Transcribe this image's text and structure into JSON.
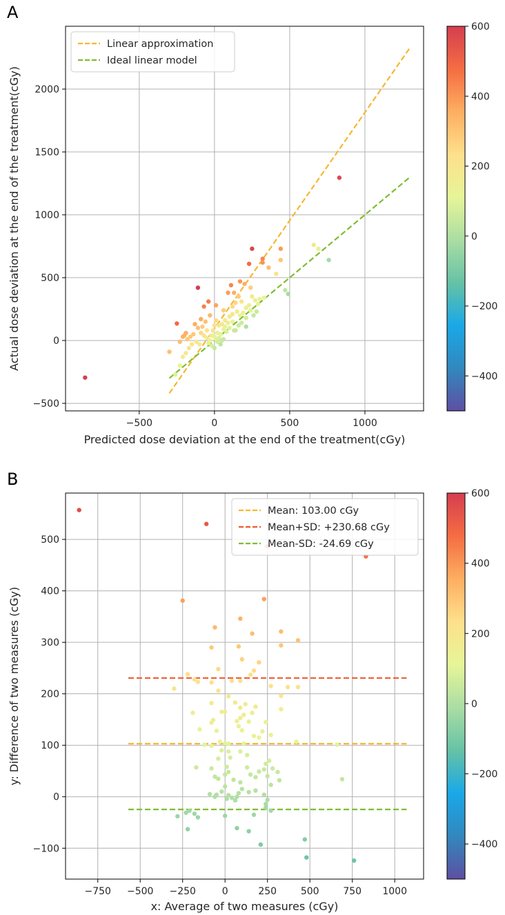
{
  "colormap": {
    "stops": [
      "#5e4fa2",
      "#3288bd",
      "#1aa8e8",
      "#66c2a5",
      "#abdda4",
      "#e6f598",
      "#fee08b",
      "#fdae61",
      "#f46d43",
      "#d53e4f"
    ],
    "min": -500,
    "max": 600,
    "ticks": [
      -400,
      -200,
      0,
      200,
      400,
      600
    ],
    "tick_labels": [
      "−400",
      "−200",
      "0",
      "200",
      "400",
      "600"
    ]
  },
  "chart_data": [
    {
      "type": "scatter",
      "panel_label": "A",
      "xlabel": "Predicted dose deviation at the end of the treatment(cGy)",
      "ylabel": "Actual dose deviation at the end of the treatment(cGy)",
      "xlim": [
        -990,
        1390
      ],
      "ylim": [
        -560,
        2500
      ],
      "xticks": [
        -500,
        0,
        500,
        1000
      ],
      "xtick_labels": [
        "−500",
        "0",
        "500",
        "1000"
      ],
      "yticks": [
        -500,
        0,
        500,
        1000,
        1500,
        2000
      ],
      "ytick_labels": [
        "−500",
        "0",
        "500",
        "1000",
        "1500",
        "2000"
      ],
      "grid": true,
      "legend_position": "upper-left",
      "lines": [
        {
          "name": "Linear approximation",
          "color": "#f5b731",
          "x": [
            -300,
            1300
          ],
          "y": [
            -420,
            2330
          ]
        },
        {
          "name": "Ideal linear model",
          "color": "#7ebd2e",
          "x": [
            -300,
            1300
          ],
          "y": [
            -300,
            1300
          ]
        }
      ],
      "points": [
        [
          -860,
          -295
        ],
        [
          830,
          1295
        ],
        [
          -110,
          420
        ],
        [
          250,
          730
        ],
        [
          -250,
          135
        ],
        [
          230,
          610
        ],
        [
          440,
          730
        ],
        [
          320,
          650
        ],
        [
          320,
          620
        ],
        [
          440,
          640
        ],
        [
          660,
          760
        ],
        [
          690,
          730
        ],
        [
          760,
          640
        ],
        [
          410,
          530
        ],
        [
          360,
          580
        ],
        [
          490,
          370
        ],
        [
          470,
          400
        ],
        [
          200,
          450
        ],
        [
          170,
          470
        ],
        [
          240,
          420
        ],
        [
          110,
          440
        ],
        [
          90,
          380
        ],
        [
          130,
          380
        ],
        [
          160,
          350
        ],
        [
          250,
          350
        ],
        [
          300,
          330
        ],
        [
          330,
          340
        ],
        [
          -40,
          310
        ],
        [
          -70,
          270
        ],
        [
          10,
          280
        ],
        [
          60,
          240
        ],
        [
          120,
          270
        ],
        [
          140,
          300
        ],
        [
          180,
          310
        ],
        [
          210,
          260
        ],
        [
          230,
          280
        ],
        [
          270,
          320
        ],
        [
          290,
          290
        ],
        [
          -130,
          130
        ],
        [
          -110,
          100
        ],
        [
          -90,
          170
        ],
        [
          -60,
          150
        ],
        [
          -30,
          200
        ],
        [
          10,
          160
        ],
        [
          30,
          120
        ],
        [
          50,
          130
        ],
        [
          70,
          160
        ],
        [
          100,
          190
        ],
        [
          120,
          210
        ],
        [
          150,
          230
        ],
        [
          170,
          200
        ],
        [
          190,
          220
        ],
        [
          210,
          180
        ],
        [
          240,
          240
        ],
        [
          260,
          200
        ],
        [
          280,
          230
        ],
        [
          210,
          110
        ],
        [
          140,
          80
        ],
        [
          160,
          120
        ],
        [
          180,
          140
        ],
        [
          -200,
          40
        ],
        [
          -180,
          10
        ],
        [
          -160,
          30
        ],
        [
          -140,
          50
        ],
        [
          -120,
          -10
        ],
        [
          -100,
          -30
        ],
        [
          -90,
          60
        ],
        [
          -70,
          40
        ],
        [
          -50,
          20
        ],
        [
          -30,
          0
        ],
        [
          -20,
          40
        ],
        [
          -10,
          80
        ],
        [
          0,
          30
        ],
        [
          10,
          10
        ],
        [
          20,
          60
        ],
        [
          30,
          20
        ],
        [
          40,
          50
        ],
        [
          50,
          0
        ],
        [
          60,
          90
        ],
        [
          70,
          110
        ],
        [
          80,
          70
        ],
        [
          90,
          140
        ],
        [
          100,
          100
        ],
        [
          -150,
          -30
        ],
        [
          -170,
          -60
        ],
        [
          -190,
          -100
        ],
        [
          -210,
          -130
        ],
        [
          -230,
          -200
        ],
        [
          -260,
          -270
        ],
        [
          -300,
          -90
        ],
        [
          -230,
          -10
        ],
        [
          -210,
          30
        ],
        [
          -190,
          60
        ],
        [
          -40,
          -20
        ],
        [
          -20,
          -40
        ],
        [
          0,
          -60
        ],
        [
          20,
          -10
        ],
        [
          40,
          -30
        ],
        [
          60,
          10
        ],
        [
          130,
          80
        ],
        [
          120,
          150
        ],
        [
          0,
          120
        ],
        [
          -50,
          80
        ],
        [
          -80,
          110
        ]
      ]
    },
    {
      "type": "scatter",
      "panel_label": "B",
      "xlabel": "x: Average of two measures (cGy)",
      "ylabel": "y: Difference of two measures (cGy)",
      "xlim": [
        -940,
        1170
      ],
      "ylim": [
        -160,
        590
      ],
      "xticks": [
        -750,
        -500,
        -250,
        0,
        250,
        500,
        750,
        1000
      ],
      "xtick_labels": [
        "−750",
        "−500",
        "−250",
        "0",
        "250",
        "500",
        "750",
        "1000"
      ],
      "yticks": [
        -100,
        0,
        100,
        200,
        300,
        400,
        500
      ],
      "ytick_labels": [
        "−100",
        "0",
        "100",
        "200",
        "300",
        "400",
        "500"
      ],
      "grid": true,
      "legend_position": "upper-right",
      "lines": [
        {
          "name": "Mean: 103.00 cGy",
          "color": "#f5b731",
          "x": [
            -570,
            1070
          ],
          "y": [
            103.0,
            103.0
          ]
        },
        {
          "name": "Mean+SD: +230.68 cGy",
          "color": "#f05a2c",
          "x": [
            -570,
            1070
          ],
          "y": [
            230.68,
            230.68
          ]
        },
        {
          "name": "Mean-SD: -24.69 cGy",
          "color": "#7ebd2e",
          "x": [
            -570,
            1070
          ],
          "y": [
            -24.69,
            -24.69
          ]
        }
      ],
      "points": [
        [
          -860,
          557
        ],
        [
          -110,
          530
        ],
        [
          830,
          467
        ],
        [
          250,
          487
        ],
        [
          -250,
          381
        ],
        [
          230,
          384
        ],
        [
          -60,
          329
        ],
        [
          90,
          346
        ],
        [
          160,
          317
        ],
        [
          330,
          321
        ],
        [
          330,
          294
        ],
        [
          -80,
          290
        ],
        [
          80,
          292
        ],
        [
          430,
          304
        ],
        [
          200,
          261
        ],
        [
          170,
          245
        ],
        [
          100,
          267
        ],
        [
          -40,
          248
        ],
        [
          -220,
          238
        ],
        [
          -300,
          210
        ],
        [
          -180,
          228
        ],
        [
          -160,
          223
        ],
        [
          -80,
          222
        ],
        [
          40,
          225
        ],
        [
          90,
          225
        ],
        [
          150,
          237
        ],
        [
          270,
          215
        ],
        [
          370,
          213
        ],
        [
          430,
          213
        ],
        [
          330,
          196
        ],
        [
          330,
          170
        ],
        [
          -40,
          206
        ],
        [
          20,
          195
        ],
        [
          60,
          183
        ],
        [
          90,
          173
        ],
        [
          120,
          180
        ],
        [
          160,
          163
        ],
        [
          180,
          175
        ],
        [
          -190,
          163
        ],
        [
          -80,
          182
        ],
        [
          -20,
          165
        ],
        [
          0,
          165
        ],
        [
          110,
          159
        ],
        [
          -150,
          131
        ],
        [
          -80,
          144
        ],
        [
          -70,
          149
        ],
        [
          -50,
          128
        ],
        [
          70,
          147
        ],
        [
          80,
          137
        ],
        [
          90,
          153
        ],
        [
          100,
          129
        ],
        [
          140,
          146
        ],
        [
          240,
          145
        ],
        [
          220,
          127
        ],
        [
          170,
          118
        ],
        [
          200,
          115
        ],
        [
          270,
          120
        ],
        [
          420,
          107
        ],
        [
          660,
          101
        ],
        [
          -120,
          101
        ],
        [
          -80,
          99
        ],
        [
          -30,
          107
        ],
        [
          0,
          104
        ],
        [
          20,
          103
        ],
        [
          110,
          103
        ],
        [
          -20,
          90
        ],
        [
          20,
          88
        ],
        [
          90,
          88
        ],
        [
          130,
          81
        ],
        [
          30,
          76
        ],
        [
          -40,
          74
        ],
        [
          -170,
          57
        ],
        [
          -80,
          55
        ],
        [
          10,
          58
        ],
        [
          130,
          57
        ],
        [
          240,
          64
        ],
        [
          260,
          70
        ],
        [
          280,
          55
        ],
        [
          310,
          48
        ],
        [
          -60,
          39
        ],
        [
          -40,
          35
        ],
        [
          0,
          43
        ],
        [
          20,
          48
        ],
        [
          50,
          33
        ],
        [
          90,
          28
        ],
        [
          150,
          43
        ],
        [
          180,
          38
        ],
        [
          200,
          49
        ],
        [
          230,
          53
        ],
        [
          250,
          40
        ],
        [
          320,
          32
        ],
        [
          690,
          34
        ],
        [
          -90,
          5
        ],
        [
          -50,
          4
        ],
        [
          -20,
          10
        ],
        [
          0,
          20
        ],
        [
          20,
          3
        ],
        [
          40,
          -2
        ],
        [
          70,
          0
        ],
        [
          80,
          7
        ],
        [
          100,
          15
        ],
        [
          140,
          9
        ],
        [
          180,
          12
        ],
        [
          230,
          4
        ],
        [
          250,
          -6
        ],
        [
          270,
          23
        ],
        [
          -60,
          0
        ],
        [
          10,
          -4
        ],
        [
          60,
          -7
        ],
        [
          -280,
          -38
        ],
        [
          -230,
          -31
        ],
        [
          -210,
          -27
        ],
        [
          -180,
          -33
        ],
        [
          -160,
          -40
        ],
        [
          -220,
          -63
        ],
        [
          0,
          -37
        ],
        [
          70,
          -61
        ],
        [
          140,
          -67
        ],
        [
          170,
          -35
        ],
        [
          210,
          -93
        ],
        [
          240,
          -14
        ],
        [
          240,
          -21
        ],
        [
          270,
          -27
        ],
        [
          470,
          -83
        ],
        [
          480,
          -118
        ],
        [
          760,
          -124
        ]
      ]
    }
  ]
}
